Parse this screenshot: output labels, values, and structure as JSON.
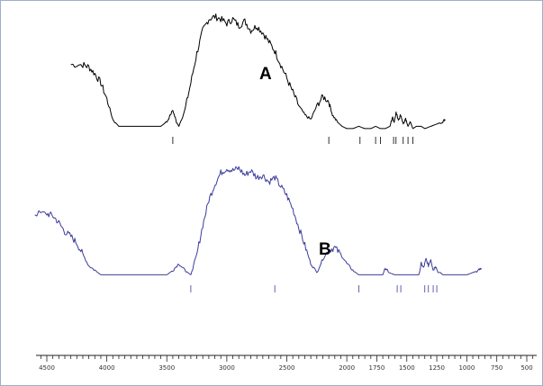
{
  "chart_data": {
    "type": "line",
    "title": "",
    "xlabel": "",
    "ylabel": "",
    "x_reversed": true,
    "xlim": [
      4600,
      500
    ],
    "x_ticks": [
      4500,
      4000,
      3500,
      3000,
      2500,
      2000,
      1750,
      1500,
      1250,
      1000,
      750,
      500
    ],
    "x_tick_labels": [
      "4500",
      "4000",
      "3500",
      "3000",
      "2500",
      "2000",
      "1750",
      "1500",
      "1250",
      "1000",
      "750",
      "500"
    ],
    "series": [
      {
        "name": "A",
        "color": "#000000",
        "peak_markers_x": [
          3450,
          2150,
          1890,
          1760,
          1720,
          1610,
          1590,
          1530,
          1490,
          1450
        ],
        "points": [
          [
            4300,
            0.8
          ],
          [
            4200,
            0.8
          ],
          [
            4150,
            0.79
          ],
          [
            4100,
            0.76
          ],
          [
            4050,
            0.72
          ],
          [
            4000,
            0.65
          ],
          [
            3950,
            0.56
          ],
          [
            3900,
            0.53
          ],
          [
            3850,
            0.53
          ],
          [
            3800,
            0.53
          ],
          [
            3700,
            0.53
          ],
          [
            3600,
            0.53
          ],
          [
            3550,
            0.53
          ],
          [
            3500,
            0.55
          ],
          [
            3450,
            0.6
          ],
          [
            3420,
            0.55
          ],
          [
            3400,
            0.53
          ],
          [
            3350,
            0.6
          ],
          [
            3300,
            0.72
          ],
          [
            3250,
            0.85
          ],
          [
            3200,
            0.95
          ],
          [
            3150,
            1.0
          ],
          [
            3100,
            1.01
          ],
          [
            3050,
            1.0
          ],
          [
            3000,
            0.98
          ],
          [
            2950,
            1.0
          ],
          [
            2900,
            0.97
          ],
          [
            2850,
            0.99
          ],
          [
            2800,
            0.95
          ],
          [
            2750,
            0.97
          ],
          [
            2700,
            0.94
          ],
          [
            2650,
            0.9
          ],
          [
            2600,
            0.86
          ],
          [
            2550,
            0.8
          ],
          [
            2500,
            0.74
          ],
          [
            2450,
            0.68
          ],
          [
            2400,
            0.62
          ],
          [
            2350,
            0.58
          ],
          [
            2300,
            0.56
          ],
          [
            2250,
            0.62
          ],
          [
            2200,
            0.66
          ],
          [
            2150,
            0.64
          ],
          [
            2120,
            0.58
          ],
          [
            2080,
            0.55
          ],
          [
            2040,
            0.53
          ],
          [
            2000,
            0.52
          ],
          [
            1950,
            0.52
          ],
          [
            1900,
            0.53
          ],
          [
            1850,
            0.52
          ],
          [
            1800,
            0.52
          ],
          [
            1760,
            0.53
          ],
          [
            1720,
            0.52
          ],
          [
            1680,
            0.52
          ],
          [
            1640,
            0.53
          ],
          [
            1620,
            0.57
          ],
          [
            1605,
            0.55
          ],
          [
            1590,
            0.59
          ],
          [
            1570,
            0.56
          ],
          [
            1550,
            0.58
          ],
          [
            1530,
            0.54
          ],
          [
            1510,
            0.56
          ],
          [
            1490,
            0.53
          ],
          [
            1470,
            0.55
          ],
          [
            1450,
            0.52
          ],
          [
            1420,
            0.53
          ],
          [
            1380,
            0.53
          ],
          [
            1350,
            0.52
          ],
          [
            1300,
            0.53
          ],
          [
            1250,
            0.54
          ],
          [
            1200,
            0.55
          ],
          [
            1180,
            0.56
          ]
        ]
      },
      {
        "name": "B",
        "color": "#3c3c9a",
        "peak_markers_x": [
          3300,
          2600,
          1900,
          1580,
          1550,
          1350,
          1320,
          1280,
          1250
        ],
        "points": [
          [
            4600,
            0.8
          ],
          [
            4500,
            0.8
          ],
          [
            4450,
            0.79
          ],
          [
            4400,
            0.76
          ],
          [
            4350,
            0.72
          ],
          [
            4300,
            0.7
          ],
          [
            4250,
            0.67
          ],
          [
            4200,
            0.62
          ],
          [
            4150,
            0.57
          ],
          [
            4100,
            0.55
          ],
          [
            4050,
            0.53
          ],
          [
            4000,
            0.53
          ],
          [
            3900,
            0.53
          ],
          [
            3800,
            0.53
          ],
          [
            3700,
            0.53
          ],
          [
            3600,
            0.53
          ],
          [
            3500,
            0.53
          ],
          [
            3450,
            0.55
          ],
          [
            3400,
            0.58
          ],
          [
            3350,
            0.55
          ],
          [
            3300,
            0.53
          ],
          [
            3250,
            0.62
          ],
          [
            3200,
            0.75
          ],
          [
            3150,
            0.86
          ],
          [
            3100,
            0.93
          ],
          [
            3050,
            0.98
          ],
          [
            3000,
            1.0
          ],
          [
            2950,
            0.99
          ],
          [
            2900,
            1.0
          ],
          [
            2850,
            0.97
          ],
          [
            2800,
            0.99
          ],
          [
            2750,
            0.96
          ],
          [
            2700,
            0.97
          ],
          [
            2650,
            0.94
          ],
          [
            2600,
            0.96
          ],
          [
            2550,
            0.92
          ],
          [
            2500,
            0.88
          ],
          [
            2450,
            0.82
          ],
          [
            2400,
            0.74
          ],
          [
            2350,
            0.66
          ],
          [
            2300,
            0.58
          ],
          [
            2250,
            0.54
          ],
          [
            2200,
            0.6
          ],
          [
            2150,
            0.64
          ],
          [
            2100,
            0.65
          ],
          [
            2050,
            0.62
          ],
          [
            2000,
            0.58
          ],
          [
            1950,
            0.55
          ],
          [
            1900,
            0.53
          ],
          [
            1850,
            0.53
          ],
          [
            1800,
            0.53
          ],
          [
            1750,
            0.53
          ],
          [
            1700,
            0.53
          ],
          [
            1680,
            0.56
          ],
          [
            1650,
            0.54
          ],
          [
            1600,
            0.53
          ],
          [
            1580,
            0.53
          ],
          [
            1550,
            0.53
          ],
          [
            1500,
            0.53
          ],
          [
            1450,
            0.53
          ],
          [
            1400,
            0.53
          ],
          [
            1380,
            0.58
          ],
          [
            1360,
            0.56
          ],
          [
            1340,
            0.6
          ],
          [
            1320,
            0.57
          ],
          [
            1300,
            0.6
          ],
          [
            1280,
            0.55
          ],
          [
            1260,
            0.57
          ],
          [
            1240,
            0.54
          ],
          [
            1220,
            0.54
          ],
          [
            1200,
            0.53
          ],
          [
            1100,
            0.53
          ],
          [
            1000,
            0.53
          ],
          [
            950,
            0.54
          ],
          [
            900,
            0.55
          ],
          [
            880,
            0.56
          ]
        ]
      }
    ],
    "labels": [
      "A",
      "B"
    ]
  }
}
